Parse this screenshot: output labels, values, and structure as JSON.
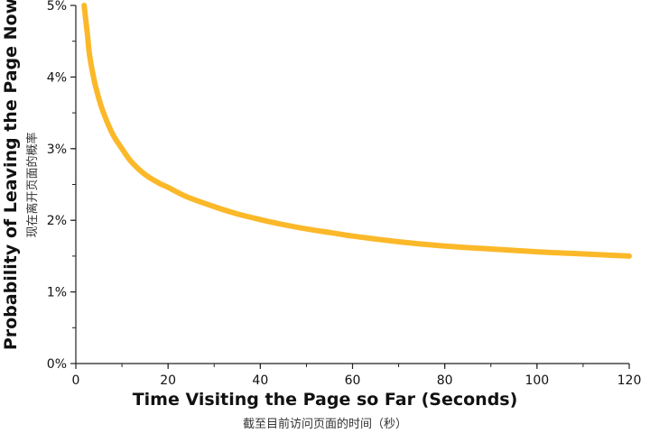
{
  "chart_data": {
    "type": "line",
    "title": "",
    "xlabel": "Time Visiting the Page so Far (Seconds)",
    "xlabel_sub": "截至目前访问页面的时间（秒）",
    "ylabel": "Probability of Leaving the Page Now",
    "ylabel_sub": "现在离开页面的概率",
    "xlim": [
      0,
      120
    ],
    "ylim": [
      0,
      5
    ],
    "x_ticks": [
      0,
      20,
      40,
      60,
      80,
      100,
      120
    ],
    "x_tick_labels": [
      "0",
      "20",
      "40",
      "60",
      "80",
      "100",
      "120"
    ],
    "y_ticks": [
      0,
      1,
      2,
      3,
      4,
      5
    ],
    "y_tick_labels": [
      "0%",
      "1%",
      "2%",
      "3%",
      "4%",
      "5%"
    ],
    "grid": false,
    "series": [
      {
        "color": "#FBB829",
        "x": [
          1.8,
          2.5,
          3,
          4,
          5,
          6,
          8,
          10,
          12,
          15,
          18,
          20,
          24,
          30,
          35,
          40,
          45,
          50,
          55,
          60,
          70,
          80,
          90,
          100,
          110,
          120
        ],
        "y": [
          5.0,
          4.6,
          4.3,
          3.95,
          3.7,
          3.5,
          3.2,
          3.0,
          2.82,
          2.64,
          2.52,
          2.46,
          2.33,
          2.19,
          2.09,
          2.01,
          1.94,
          1.88,
          1.83,
          1.78,
          1.7,
          1.64,
          1.6,
          1.56,
          1.53,
          1.5
        ]
      }
    ]
  }
}
